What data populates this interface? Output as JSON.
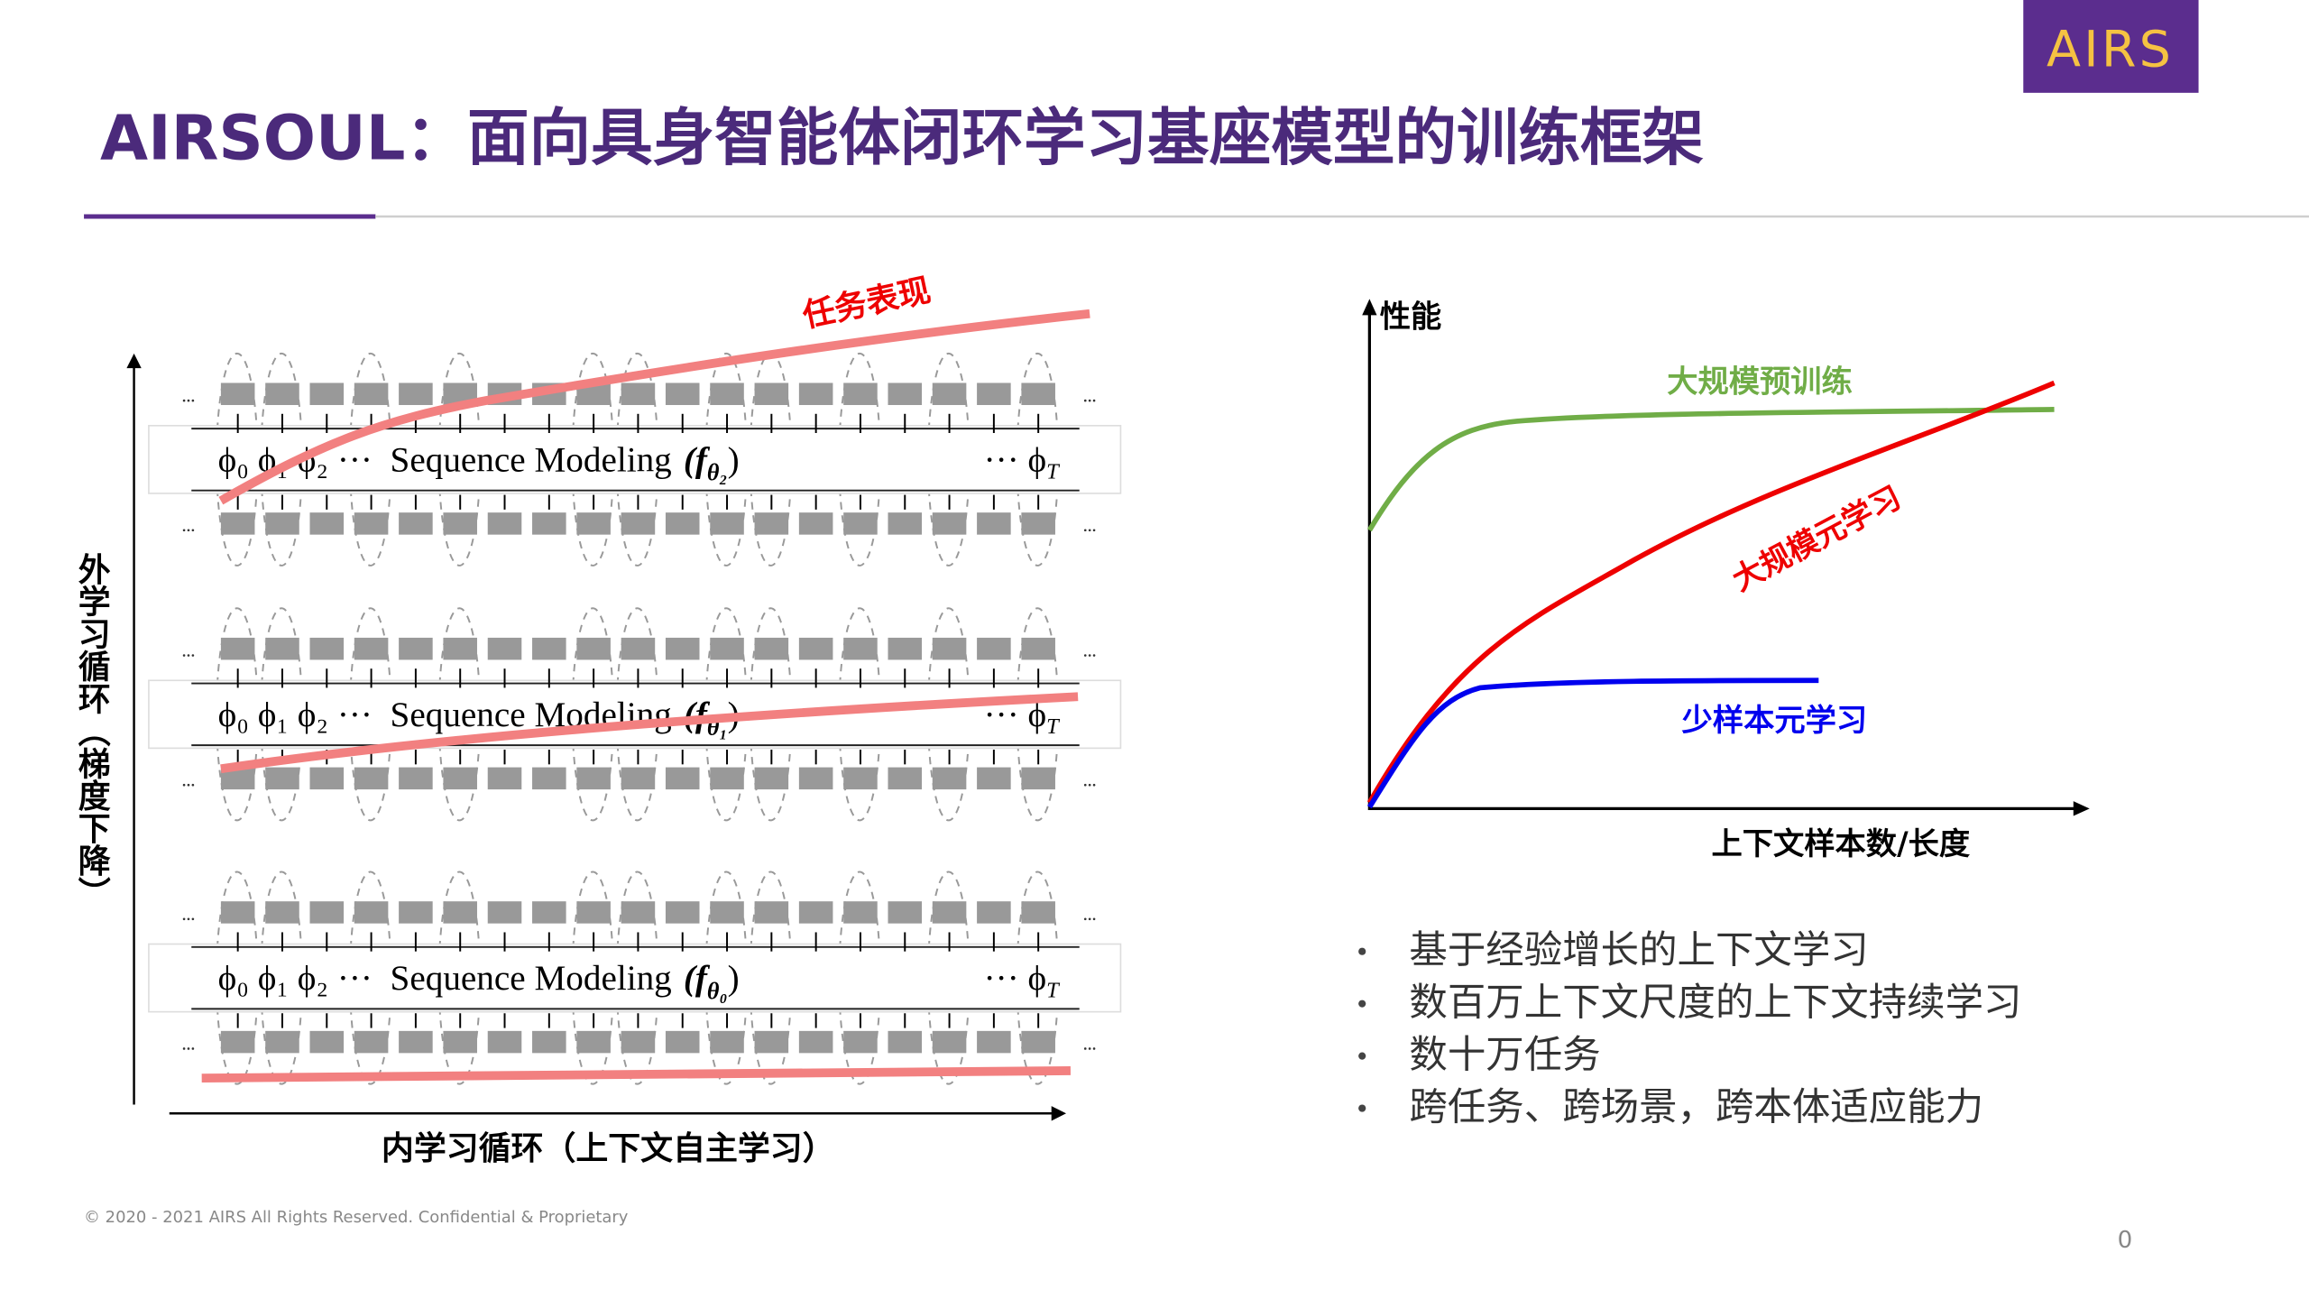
{
  "header": {
    "title": "AIRSOUL：面向具身智能体闭环学习基座模型的训练框架",
    "logo": "AIRS"
  },
  "diagram": {
    "task_label": "任务表现",
    "outer_axis_label": "外学习循环（梯度下降）",
    "inner_axis_label": "内学习循环（上下文自主学习）",
    "rows": [
      {
        "prefix": "ϕ₀ ϕ₁ ϕ₂ ···",
        "label": "Sequence Modeling",
        "func": "(f",
        "sub": "θ₂",
        "close": ")",
        "suffix": "··· ϕ",
        "suffix_sub": "T"
      },
      {
        "prefix": "ϕ₀ ϕ₁ ϕ₂ ···",
        "label": "Sequence Modeling",
        "func": "(f",
        "sub": "θ₁",
        "close": ")",
        "suffix": "··· ϕ",
        "suffix_sub": "T"
      },
      {
        "prefix": "ϕ₀ ϕ₁ ϕ₂ ···",
        "label": "Sequence Modeling",
        "func": "(f",
        "sub": "θ₀",
        "close": ")",
        "suffix": "··· ϕ",
        "suffix_sub": "T"
      }
    ]
  },
  "curve_chart": {
    "y_label": "性能",
    "x_label": "上下文样本数/长度",
    "curves": [
      {
        "name": "大规模预训练",
        "color": "#70ad47"
      },
      {
        "name": "大规模元学习",
        "color": "#ee0000"
      },
      {
        "name": "少样本元学习",
        "color": "#0000ee"
      }
    ]
  },
  "bullets": [
    "基于经验增长的上下文学习",
    "数百万上下文尺度的上下文持续学习",
    "数十万任务",
    "跨任务、跨场景，跨本体适应能力"
  ],
  "footer": {
    "copyright": "© 2020 - 2021 AIRS All Rights Reserved. Confidential & Proprietary",
    "page": "0"
  }
}
